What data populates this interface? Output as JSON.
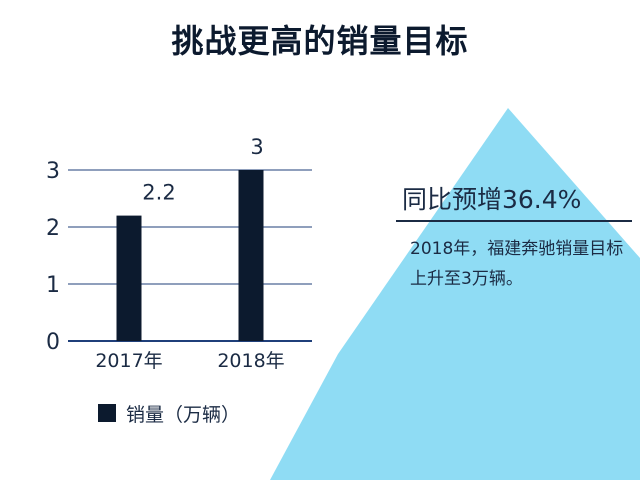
{
  "page": {
    "title": "挑战更高的销量目标"
  },
  "callout": {
    "headline": "同比预增36.4%",
    "body": "2018年，福建奔驰销量目标上升至3万辆。"
  },
  "colors": {
    "bar": "#0c1a2e",
    "arrow": "#8fdcf4",
    "gridline": "#1f3f7a",
    "text": "#1b2b44"
  },
  "chart_data": {
    "type": "bar",
    "categories": [
      "2017年",
      "2018年"
    ],
    "series": [
      {
        "name": "销量（万辆）",
        "values": [
          2.2,
          3
        ]
      }
    ],
    "data_labels": [
      "2.2",
      "3"
    ],
    "yticks": [
      "0",
      "1",
      "2",
      "3"
    ],
    "ylim": [
      0,
      3
    ],
    "grid": true,
    "legend": "bottom-left"
  }
}
